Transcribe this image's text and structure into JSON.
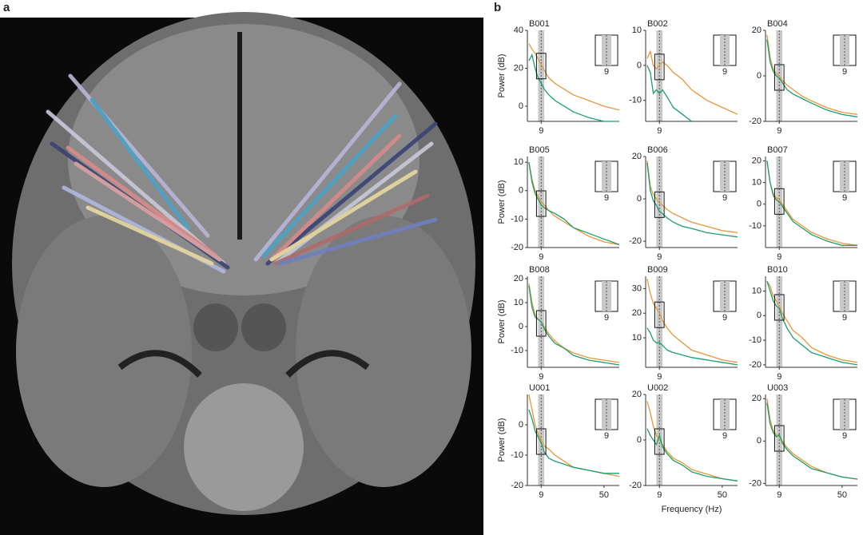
{
  "panel_labels": [
    "a",
    "b"
  ],
  "chart_data": [
    {
      "type": "line",
      "title": "B001",
      "ylabel": "Power (dB)",
      "x": [
        1,
        3,
        5,
        7,
        9,
        11,
        14,
        18,
        24,
        30,
        40,
        50,
        60
      ],
      "xlim": [
        0,
        60
      ],
      "xticks": [
        9
      ],
      "ylim": [
        -8,
        40
      ],
      "yticks": [
        0,
        20,
        40
      ],
      "shade": [
        7,
        11
      ],
      "inset_xtick": 9,
      "series": [
        {
          "color": "#e8963a",
          "values": [
            33,
            30,
            28,
            25,
            22,
            19,
            15,
            12,
            9,
            6,
            3,
            0,
            -2
          ]
        },
        {
          "color": "#1a9e6e",
          "values": [
            24,
            27,
            20,
            15,
            12,
            9,
            6,
            3,
            0,
            -3,
            -6,
            -8,
            -8
          ]
        }
      ]
    },
    {
      "type": "line",
      "title": "B002",
      "x": [
        1,
        3,
        5,
        7,
        9,
        11,
        14,
        18,
        24,
        30,
        40,
        50,
        60
      ],
      "xlim": [
        0,
        60
      ],
      "xticks": [
        9
      ],
      "ylim": [
        -16,
        10
      ],
      "yticks": [
        -10,
        0,
        10
      ],
      "shade": [
        7,
        11
      ],
      "inset_xtick": 9,
      "series": [
        {
          "color": "#e8963a",
          "values": [
            2,
            4,
            0,
            -1,
            0,
            1,
            0,
            -2,
            -4,
            -7,
            -10,
            -12,
            -14
          ]
        },
        {
          "color": "#1a9e6e",
          "values": [
            0,
            -2,
            -8,
            -7,
            -8,
            -7,
            -9,
            -12,
            -14,
            -16,
            null,
            null,
            null
          ]
        }
      ]
    },
    {
      "type": "line",
      "title": "B004",
      "x": [
        1,
        3,
        5,
        7,
        9,
        11,
        14,
        18,
        24,
        30,
        40,
        50,
        60
      ],
      "xlim": [
        0,
        60
      ],
      "xticks": [
        9
      ],
      "ylim": [
        -20,
        20
      ],
      "yticks": [
        -20,
        0,
        20
      ],
      "shade": [
        7,
        11
      ],
      "inset_xtick": 9,
      "series": [
        {
          "color": "#e8963a",
          "values": [
            18,
            8,
            3,
            1,
            0,
            -2,
            -4,
            -6,
            -9,
            -11,
            -14,
            -16,
            -17
          ]
        },
        {
          "color": "#1a9e6e",
          "values": [
            16,
            6,
            2,
            0,
            -1,
            -3,
            -6,
            -8,
            -10,
            -12,
            -15,
            -17,
            -18
          ]
        }
      ]
    },
    {
      "type": "line",
      "title": "B005",
      "ylabel": "Power (dB)",
      "x": [
        1,
        3,
        5,
        7,
        9,
        11,
        14,
        18,
        24,
        30,
        40,
        50,
        60
      ],
      "xlim": [
        0,
        60
      ],
      "xticks": [
        9
      ],
      "ylim": [
        -20,
        12
      ],
      "yticks": [
        -20,
        -10,
        0,
        10
      ],
      "shade": [
        7,
        11
      ],
      "inset_xtick": 9,
      "series": [
        {
          "color": "#e8963a",
          "values": [
            10,
            4,
            0,
            -2,
            -4,
            -5,
            -7,
            -9,
            -11,
            -13,
            -16,
            -18,
            -19
          ]
        },
        {
          "color": "#1a9e6e",
          "values": [
            10,
            3,
            -1,
            -3,
            -5,
            -6,
            -7,
            -8,
            -10,
            -13,
            -15,
            -17,
            -19
          ]
        }
      ]
    },
    {
      "type": "line",
      "title": "B006",
      "x": [
        1,
        3,
        5,
        7,
        9,
        11,
        14,
        18,
        24,
        30,
        40,
        50,
        60
      ],
      "xlim": [
        0,
        60
      ],
      "xticks": [
        9
      ],
      "ylim": [
        -23,
        20
      ],
      "yticks": [
        -20,
        0,
        20
      ],
      "shade": [
        7,
        11
      ],
      "inset_xtick": 9,
      "series": [
        {
          "color": "#e8963a",
          "values": [
            18,
            6,
            2,
            0,
            -2,
            -3,
            -5,
            -7,
            -9,
            -11,
            -13,
            -15,
            -16
          ]
        },
        {
          "color": "#1a9e6e",
          "values": [
            17,
            4,
            -1,
            -3,
            -6,
            -7,
            -9,
            -11,
            -13,
            -14,
            -16,
            -17,
            -18
          ]
        }
      ]
    },
    {
      "type": "line",
      "title": "B007",
      "x": [
        1,
        3,
        5,
        7,
        9,
        11,
        14,
        18,
        24,
        30,
        40,
        50,
        60
      ],
      "xlim": [
        0,
        60
      ],
      "xticks": [
        9
      ],
      "ylim": [
        -20,
        22
      ],
      "yticks": [
        -10,
        0,
        10,
        20
      ],
      "shade": [
        7,
        11
      ],
      "inset_xtick": 9,
      "series": [
        {
          "color": "#e8963a",
          "values": [
            20,
            10,
            5,
            3,
            2,
            0,
            -3,
            -7,
            -10,
            -13,
            -16,
            -18,
            -19
          ]
        },
        {
          "color": "#1a9e6e",
          "values": [
            20,
            10,
            4,
            2,
            1,
            -1,
            -4,
            -8,
            -11,
            -14,
            -17,
            -19,
            -19
          ]
        }
      ]
    },
    {
      "type": "line",
      "title": "B008",
      "ylabel": "Power (dB)",
      "x": [
        1,
        3,
        5,
        7,
        9,
        11,
        14,
        18,
        24,
        30,
        40,
        50,
        60
      ],
      "xlim": [
        0,
        60
      ],
      "xticks": [
        9
      ],
      "ylim": [
        -17,
        21
      ],
      "yticks": [
        -10,
        0,
        10,
        20
      ],
      "shade": [
        7,
        11
      ],
      "inset_xtick": 9,
      "series": [
        {
          "color": "#e8963a",
          "values": [
            18,
            10,
            5,
            3,
            2,
            0,
            -3,
            -6,
            -9,
            -11,
            -13,
            -14,
            -15
          ]
        },
        {
          "color": "#1a9e6e",
          "values": [
            17,
            8,
            4,
            3,
            2,
            -1,
            -4,
            -7,
            -9,
            -12,
            -14,
            -15,
            -16
          ]
        }
      ]
    },
    {
      "type": "line",
      "title": "B009",
      "x": [
        1,
        3,
        5,
        7,
        9,
        11,
        14,
        18,
        24,
        30,
        40,
        50,
        60
      ],
      "xlim": [
        0,
        60
      ],
      "xticks": [
        9
      ],
      "ylim": [
        -2,
        35
      ],
      "yticks": [
        10,
        20,
        30
      ],
      "shade": [
        7,
        11
      ],
      "inset_xtick": 9,
      "series": [
        {
          "color": "#e8963a",
          "values": [
            34,
            28,
            24,
            22,
            20,
            17,
            14,
            11,
            8,
            5,
            3,
            1,
            0
          ]
        },
        {
          "color": "#1a9e6e",
          "values": [
            14,
            12,
            9,
            8,
            8,
            7,
            5,
            4,
            3,
            2,
            1,
            0,
            -1
          ]
        }
      ]
    },
    {
      "type": "line",
      "title": "B010",
      "x": [
        1,
        3,
        5,
        7,
        9,
        11,
        14,
        18,
        24,
        30,
        40,
        50,
        60
      ],
      "xlim": [
        0,
        60
      ],
      "xticks": [
        9
      ],
      "ylim": [
        -21,
        16
      ],
      "yticks": [
        -20,
        -10,
        0,
        10
      ],
      "shade": [
        7,
        11
      ],
      "inset_xtick": 9,
      "series": [
        {
          "color": "#e8963a",
          "values": [
            14,
            12,
            8,
            6,
            4,
            1,
            -2,
            -6,
            -9,
            -13,
            -16,
            -18,
            -19
          ]
        },
        {
          "color": "#1a9e6e",
          "values": [
            14,
            10,
            6,
            4,
            3,
            -1,
            -5,
            -9,
            -12,
            -15,
            -17,
            -19,
            -20
          ]
        }
      ]
    },
    {
      "type": "line",
      "title": "U001",
      "ylabel": "Power (dB)",
      "x": [
        1,
        3,
        5,
        7,
        9,
        11,
        14,
        18,
        24,
        30,
        40,
        50,
        60
      ],
      "xlim": [
        0,
        60
      ],
      "xticks": [
        9,
        50
      ],
      "ylim": [
        -20,
        10
      ],
      "yticks": [
        -20,
        -10,
        0
      ],
      "shade": [
        7,
        11
      ],
      "inset_xtick": 9,
      "series": [
        {
          "color": "#e8963a",
          "values": [
            10,
            5,
            0,
            -3,
            -5,
            -7,
            -8,
            -10,
            -12,
            -14,
            -15,
            -16,
            -17
          ]
        },
        {
          "color": "#1a9e6e",
          "values": [
            5,
            2,
            -2,
            -4,
            -6,
            -9,
            -11,
            -12,
            -13,
            -14,
            -15,
            -16,
            -16
          ]
        }
      ]
    },
    {
      "type": "line",
      "title": "U002",
      "xlabel": "Frequency (Hz)",
      "x": [
        1,
        3,
        5,
        7,
        9,
        11,
        14,
        18,
        24,
        30,
        40,
        50,
        60
      ],
      "xlim": [
        0,
        60
      ],
      "xticks": [
        9,
        50
      ],
      "ylim": [
        -20,
        20
      ],
      "yticks": [
        -20,
        0,
        20
      ],
      "shade": [
        7,
        11
      ],
      "inset_xtick": 9,
      "series": [
        {
          "color": "#e8963a",
          "values": [
            17,
            12,
            6,
            2,
            0,
            -2,
            -5,
            -8,
            -10,
            -13,
            -15,
            -17,
            -18
          ]
        },
        {
          "color": "#1a9e6e",
          "values": [
            5,
            2,
            0,
            -2,
            2,
            -3,
            -6,
            -9,
            -11,
            -14,
            -16,
            -17,
            -18
          ]
        }
      ]
    },
    {
      "type": "line",
      "title": "U003",
      "x": [
        1,
        3,
        5,
        7,
        9,
        11,
        14,
        18,
        24,
        30,
        40,
        50,
        60
      ],
      "xlim": [
        0,
        60
      ],
      "xticks": [
        9,
        50
      ],
      "ylim": [
        -21,
        22
      ],
      "yticks": [
        -20,
        0,
        20
      ],
      "shade": [
        7,
        11
      ],
      "inset_xtick": 9,
      "series": [
        {
          "color": "#e8963a",
          "values": [
            20,
            10,
            5,
            3,
            2,
            0,
            -3,
            -6,
            -9,
            -12,
            -15,
            -17,
            -18
          ]
        },
        {
          "color": "#1a9e6e",
          "values": [
            18,
            8,
            4,
            2,
            3,
            -1,
            -4,
            -7,
            -10,
            -13,
            -15,
            -17,
            -18
          ]
        }
      ]
    }
  ]
}
